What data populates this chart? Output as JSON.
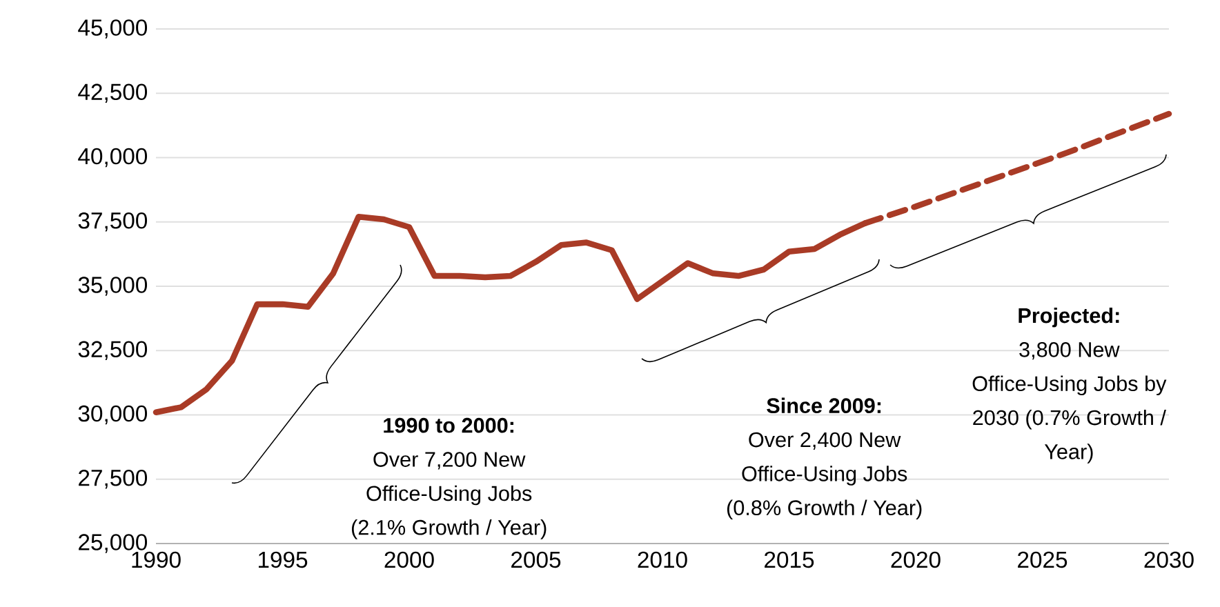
{
  "chart_data": {
    "type": "line",
    "x": [
      1990,
      1991,
      1992,
      1993,
      1994,
      1995,
      1996,
      1997,
      1998,
      1999,
      2000,
      2001,
      2002,
      2003,
      2004,
      2005,
      2006,
      2007,
      2008,
      2009,
      2010,
      2011,
      2012,
      2013,
      2014,
      2015,
      2016,
      2017,
      2018
    ],
    "series": [
      {
        "color": "#a93b26",
        "line_style": "solid",
        "values": [
          30100,
          30300,
          31000,
          32100,
          34300,
          34300,
          34200,
          35500,
          37700,
          37600,
          37300,
          35400,
          35400,
          35350,
          35400,
          35950,
          36600,
          36700,
          36400,
          34500,
          35200,
          35900,
          35500,
          35400,
          35650,
          36350,
          36450,
          37000,
          37450
        ]
      },
      {
        "color": "#a93b26",
        "line_style": "dashed",
        "x": [
          2018,
          2020,
          2022,
          2024,
          2026,
          2028,
          2030
        ],
        "values": [
          37450,
          38100,
          38800,
          39500,
          40200,
          40950,
          41700
        ]
      }
    ],
    "xlim": [
      1990,
      2030
    ],
    "xticks": [
      1990,
      1995,
      2000,
      2005,
      2010,
      2015,
      2020,
      2025,
      2030
    ],
    "ylim": [
      25000,
      45000
    ],
    "yticks": [
      {
        "value": 25000,
        "label": "25,000"
      },
      {
        "value": 27500,
        "label": "27,500"
      },
      {
        "value": 30000,
        "label": "30,000"
      },
      {
        "value": 32500,
        "label": "32,500"
      },
      {
        "value": 35000,
        "label": "35,000"
      },
      {
        "value": 37500,
        "label": "37,500"
      },
      {
        "value": 40000,
        "label": "40,000"
      },
      {
        "value": 42500,
        "label": "42,500"
      },
      {
        "value": 45000,
        "label": "45,000"
      }
    ],
    "grid": "y",
    "marker": "none",
    "annotations": [
      "1990 to 2000:",
      "Over 7,200 New Office-Using Jobs (2.1% Growth / Year)",
      "Since 2009:",
      "Over 2,400 New Office-Using Jobs (0.8% Growth / Year)",
      "Projected:",
      "3,800 New Office-Using Jobs by 2030 (0.7% Growth / Year)"
    ]
  }
}
